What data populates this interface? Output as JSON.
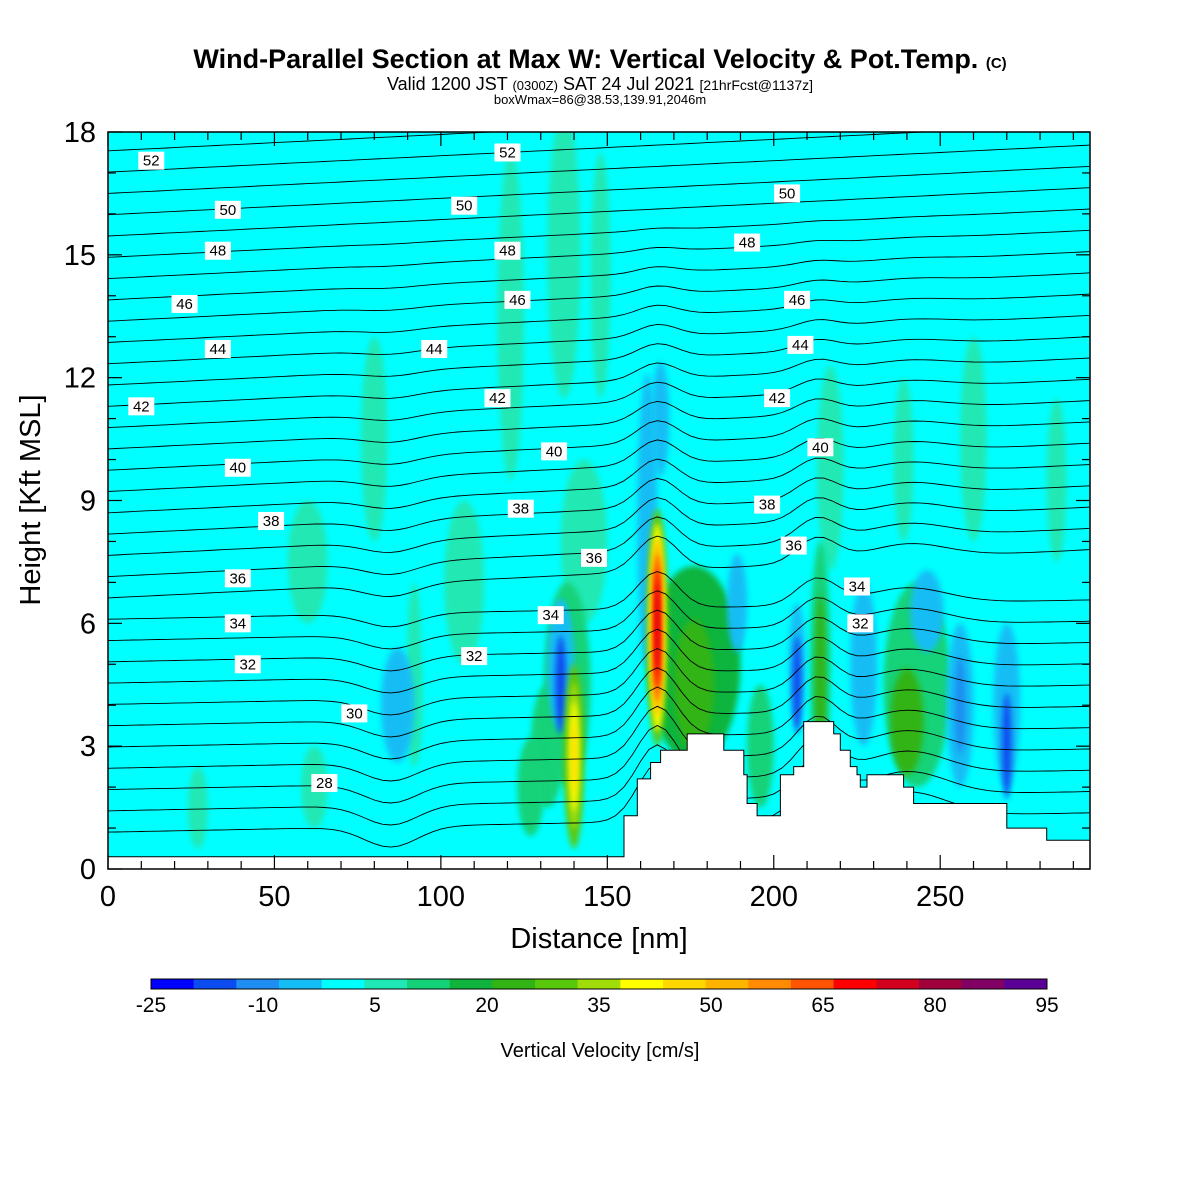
{
  "title": {
    "main": "Wind-Parallel Section at Max W: Vertical Velocity & Pot.Temp.",
    "copyright": "(C)",
    "valid_prefix": "Valid 1200 JST",
    "valid_z": "(0300Z)",
    "valid_date": "SAT 24 Jul 2021",
    "valid_fcst": "[21hrFcst@1137z]",
    "box": "boxWmax=86@38.53,139.91,2046m"
  },
  "chart_data": {
    "type": "heatmap",
    "xlabel": "Distance [nm]",
    "ylabel": "Height [Kft MSL]",
    "xlim": [
      0,
      295
    ],
    "ylim": [
      0,
      18
    ],
    "x_ticks": [
      0,
      50,
      100,
      150,
      200,
      250
    ],
    "y_ticks": [
      0,
      3,
      6,
      9,
      12,
      15,
      18
    ],
    "colorbar": {
      "label": "Vertical Velocity [cm/s]",
      "tick_labels": [
        "-25",
        "-10",
        "5",
        "20",
        "35",
        "50",
        "65",
        "80",
        "95"
      ],
      "colors": [
        "#0000ff",
        "#0a4cf0",
        "#1e8ef2",
        "#14bdf5",
        "#00ffff",
        "#20e8b4",
        "#14d278",
        "#10b43c",
        "#32b414",
        "#5ac80a",
        "#a0dc0a",
        "#ffff00",
        "#ffd700",
        "#ffb400",
        "#ff8c00",
        "#ff5500",
        "#ff0000",
        "#d2001e",
        "#a0003c",
        "#820064",
        "#5a0096"
      ]
    },
    "background_value_color": "#00ffff",
    "updraft_cores": [
      {
        "x": 165,
        "ymin": 3.0,
        "ymax": 8.8,
        "w_peak": 86
      },
      {
        "x": 140,
        "ymin": 0.5,
        "ymax": 5.0,
        "w_peak": 40
      }
    ],
    "theta_labels": [
      {
        "label": "52",
        "x": 13,
        "y": 17.3
      },
      {
        "label": "52",
        "x": 120,
        "y": 17.5
      },
      {
        "label": "50",
        "x": 36,
        "y": 16.1
      },
      {
        "label": "50",
        "x": 107,
        "y": 16.2
      },
      {
        "label": "50",
        "x": 204,
        "y": 16.5
      },
      {
        "label": "48",
        "x": 33,
        "y": 15.1
      },
      {
        "label": "48",
        "x": 120,
        "y": 15.1
      },
      {
        "label": "48",
        "x": 192,
        "y": 15.3
      },
      {
        "label": "46",
        "x": 23,
        "y": 13.8
      },
      {
        "label": "46",
        "x": 123,
        "y": 13.9
      },
      {
        "label": "46",
        "x": 207,
        "y": 13.9
      },
      {
        "label": "44",
        "x": 33,
        "y": 12.7
      },
      {
        "label": "44",
        "x": 98,
        "y": 12.7
      },
      {
        "label": "44",
        "x": 208,
        "y": 12.8
      },
      {
        "label": "42",
        "x": 10,
        "y": 11.3
      },
      {
        "label": "42",
        "x": 117,
        "y": 11.5
      },
      {
        "label": "42",
        "x": 201,
        "y": 11.5
      },
      {
        "label": "40",
        "x": 39,
        "y": 9.8
      },
      {
        "label": "40",
        "x": 134,
        "y": 10.2
      },
      {
        "label": "40",
        "x": 214,
        "y": 10.3
      },
      {
        "label": "38",
        "x": 49,
        "y": 8.5
      },
      {
        "label": "38",
        "x": 124,
        "y": 8.8
      },
      {
        "label": "38",
        "x": 198,
        "y": 8.9
      },
      {
        "label": "36",
        "x": 39,
        "y": 7.1
      },
      {
        "label": "36",
        "x": 146,
        "y": 7.6
      },
      {
        "label": "36",
        "x": 206,
        "y": 7.9
      },
      {
        "label": "34",
        "x": 39,
        "y": 6.0
      },
      {
        "label": "34",
        "x": 133,
        "y": 6.2
      },
      {
        "label": "34",
        "x": 225,
        "y": 6.9
      },
      {
        "label": "32",
        "x": 42,
        "y": 5.0
      },
      {
        "label": "32",
        "x": 110,
        "y": 5.2
      },
      {
        "label": "32",
        "x": 226,
        "y": 6.0
      },
      {
        "label": "30",
        "x": 74,
        "y": 3.8
      },
      {
        "label": "28",
        "x": 65,
        "y": 2.1
      }
    ],
    "terrain": [
      [
        0,
        0.3
      ],
      [
        152,
        0.3
      ],
      [
        155,
        1.3
      ],
      [
        158,
        1.3
      ],
      [
        159,
        2.2
      ],
      [
        162,
        2.2
      ],
      [
        163,
        2.6
      ],
      [
        165,
        2.6
      ],
      [
        166,
        2.9
      ],
      [
        168,
        2.9
      ],
      [
        169,
        2.9
      ],
      [
        174,
        3.3
      ],
      [
        183,
        3.3
      ],
      [
        185,
        2.9
      ],
      [
        189,
        2.9
      ],
      [
        191,
        2.3
      ],
      [
        192,
        1.6
      ],
      [
        195,
        1.3
      ],
      [
        201,
        1.3
      ],
      [
        202,
        2.3
      ],
      [
        205,
        2.3
      ],
      [
        206,
        2.5
      ],
      [
        209,
        3.6
      ],
      [
        216,
        3.6
      ],
      [
        218,
        3.3
      ],
      [
        220,
        2.9
      ],
      [
        223,
        2.5
      ],
      [
        225,
        2.3
      ],
      [
        226,
        2.0
      ],
      [
        228,
        2.3
      ],
      [
        233,
        2.3
      ],
      [
        236,
        2.3
      ],
      [
        239,
        2.0
      ],
      [
        242,
        1.6
      ],
      [
        247,
        1.6
      ],
      [
        250,
        1.6
      ],
      [
        268,
        1.6
      ],
      [
        270,
        1.0
      ],
      [
        280,
        1.0
      ],
      [
        282,
        0.7
      ],
      [
        292,
        0.7
      ],
      [
        295,
        0.3
      ]
    ]
  }
}
